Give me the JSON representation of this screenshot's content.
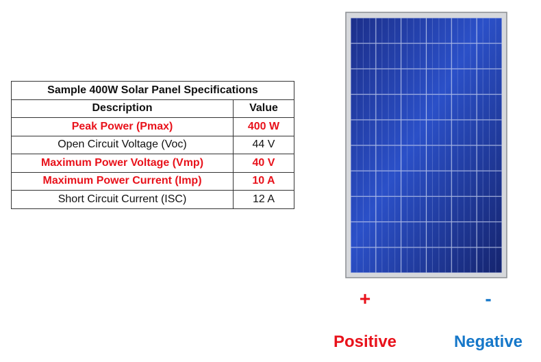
{
  "table": {
    "title": "Sample 400W Solar Panel Specifications",
    "headers": [
      "Description",
      "Value"
    ],
    "rows": [
      [
        "Peak Power (Pmax)",
        "400 W"
      ],
      [
        "Open Circuit Voltage (Voc)",
        "44 V"
      ],
      [
        "Maximum Power Voltage (Vmp)",
        "40 V"
      ],
      [
        "Maximum Power Current (Imp)",
        "10 A"
      ],
      [
        "Short Circuit Current (ISC)",
        "12 A"
      ]
    ]
  },
  "terminals": [
    {
      "symbol": "+",
      "label": "Positive"
    },
    {
      "symbol": "-",
      "label": "Negative"
    }
  ]
}
